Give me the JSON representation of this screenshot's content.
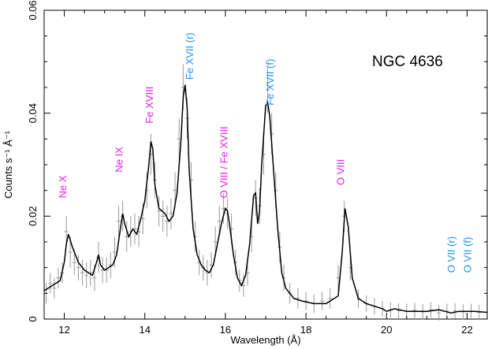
{
  "chart_data": {
    "type": "line",
    "title": "NGC 4636",
    "xlabel": "Wavelength (Å)",
    "ylabel": "Counts s⁻¹ Å⁻¹",
    "xlim": [
      11.5,
      22.5
    ],
    "ylim": [
      0,
      0.06
    ],
    "grid": false,
    "x_ticks": [
      12,
      14,
      16,
      18,
      20,
      22
    ],
    "x_tick_labels": [
      "12",
      "14",
      "16",
      "18",
      "20",
      "22"
    ],
    "y_ticks": [
      0,
      0.02,
      0.04,
      0.06
    ],
    "y_tick_labels": [
      "0",
      "0.02",
      "0.04",
      "0.06"
    ],
    "series": [
      {
        "name": "",
        "style": "line",
        "color": "#000000",
        "x": [
          11.5,
          11.7,
          11.9,
          12.0,
          12.05,
          12.1,
          12.2,
          12.35,
          12.5,
          12.7,
          12.8,
          12.85,
          12.9,
          13.0,
          13.2,
          13.3,
          13.4,
          13.45,
          13.5,
          13.6,
          13.7,
          13.8,
          13.9,
          14.0,
          14.1,
          14.15,
          14.2,
          14.25,
          14.35,
          14.5,
          14.6,
          14.7,
          14.8,
          14.9,
          14.95,
          15.0,
          15.05,
          15.1,
          15.2,
          15.3,
          15.4,
          15.5,
          15.6,
          15.7,
          15.8,
          15.9,
          16.0,
          16.05,
          16.1,
          16.2,
          16.3,
          16.4,
          16.5,
          16.6,
          16.7,
          16.75,
          16.8,
          16.85,
          16.9,
          17.0,
          17.05,
          17.1,
          17.2,
          17.3,
          17.4,
          17.5,
          17.7,
          17.9,
          18.2,
          18.5,
          18.8,
          18.9,
          18.97,
          19.05,
          19.15,
          19.3,
          19.5,
          19.7,
          19.9,
          20.0,
          20.2,
          20.5,
          20.8,
          21.0,
          21.3,
          21.6,
          21.8,
          22.0,
          22.2,
          22.5
        ],
        "y": [
          0.0055,
          0.0065,
          0.0075,
          0.011,
          0.0145,
          0.0165,
          0.014,
          0.011,
          0.0095,
          0.0085,
          0.011,
          0.0125,
          0.0105,
          0.0095,
          0.0105,
          0.0125,
          0.018,
          0.0205,
          0.0185,
          0.016,
          0.0175,
          0.0165,
          0.0195,
          0.023,
          0.03,
          0.0345,
          0.033,
          0.026,
          0.0215,
          0.0205,
          0.019,
          0.02,
          0.0245,
          0.035,
          0.043,
          0.0455,
          0.041,
          0.029,
          0.0175,
          0.0125,
          0.0105,
          0.0095,
          0.009,
          0.0105,
          0.0145,
          0.0185,
          0.0215,
          0.021,
          0.0185,
          0.0125,
          0.008,
          0.0065,
          0.0085,
          0.0145,
          0.024,
          0.0245,
          0.0185,
          0.021,
          0.03,
          0.0415,
          0.042,
          0.0395,
          0.0285,
          0.0175,
          0.009,
          0.006,
          0.004,
          0.0035,
          0.003,
          0.003,
          0.0045,
          0.013,
          0.0215,
          0.018,
          0.008,
          0.004,
          0.003,
          0.0025,
          0.002,
          0.0015,
          0.002,
          0.0015,
          0.0015,
          0.0015,
          0.0018,
          0.0012,
          0.0015,
          0.0015,
          0.0015,
          0.0013
        ]
      },
      {
        "name": "",
        "style": "errorbar-points",
        "color": "#999999",
        "x": [
          11.55,
          11.65,
          11.75,
          11.85,
          11.95,
          12.05,
          12.15,
          12.25,
          12.35,
          12.45,
          12.55,
          12.65,
          12.75,
          12.85,
          12.95,
          13.05,
          13.15,
          13.25,
          13.35,
          13.45,
          13.55,
          13.65,
          13.75,
          13.85,
          13.95,
          14.05,
          14.15,
          14.25,
          14.35,
          14.45,
          14.55,
          14.65,
          14.75,
          14.85,
          14.95,
          15.05,
          15.15,
          15.25,
          15.35,
          15.45,
          15.55,
          15.65,
          15.75,
          15.85,
          15.95,
          16.05,
          16.15,
          16.25,
          16.35,
          16.45,
          16.55,
          16.65,
          16.75,
          16.85,
          16.95,
          17.05,
          17.15,
          17.25,
          17.35,
          17.45,
          17.6,
          17.8,
          18.0,
          18.2,
          18.4,
          18.6,
          18.8,
          18.95,
          19.1,
          19.3,
          19.5,
          19.7,
          19.9,
          20.1,
          20.3,
          20.5,
          20.7,
          20.9,
          21.1,
          21.3,
          21.5,
          21.7,
          21.9,
          22.1,
          22.3
        ],
        "y": [
          0.005,
          0.007,
          0.006,
          0.008,
          0.009,
          0.017,
          0.013,
          0.011,
          0.01,
          0.009,
          0.0085,
          0.009,
          0.008,
          0.012,
          0.0095,
          0.0095,
          0.0105,
          0.013,
          0.019,
          0.02,
          0.016,
          0.017,
          0.0175,
          0.017,
          0.0195,
          0.025,
          0.032,
          0.027,
          0.021,
          0.02,
          0.019,
          0.0205,
          0.025,
          0.035,
          0.045,
          0.039,
          0.027,
          0.016,
          0.011,
          0.01,
          0.009,
          0.0105,
          0.015,
          0.019,
          0.0215,
          0.0205,
          0.0175,
          0.011,
          0.0075,
          0.0065,
          0.009,
          0.016,
          0.0235,
          0.022,
          0.032,
          0.0445,
          0.036,
          0.025,
          0.014,
          0.008,
          0.005,
          0.004,
          0.0035,
          0.003,
          0.0035,
          0.004,
          0.008,
          0.02,
          0.01,
          0.004,
          0.003,
          0.0025,
          0.002,
          0.0018,
          0.0016,
          0.0015,
          0.0017,
          0.0014,
          0.0018,
          0.0012,
          0.0015,
          0.0016,
          0.0014,
          0.0015,
          0.0013
        ],
        "yerr": [
          0.002,
          0.002,
          0.002,
          0.002,
          0.002,
          0.003,
          0.003,
          0.0025,
          0.0025,
          0.0025,
          0.0025,
          0.0025,
          0.0025,
          0.003,
          0.0025,
          0.0025,
          0.0025,
          0.003,
          0.003,
          0.003,
          0.003,
          0.003,
          0.003,
          0.003,
          0.003,
          0.0035,
          0.004,
          0.0035,
          0.003,
          0.003,
          0.003,
          0.003,
          0.0035,
          0.004,
          0.0045,
          0.004,
          0.0035,
          0.003,
          0.0025,
          0.0025,
          0.0025,
          0.0025,
          0.003,
          0.003,
          0.003,
          0.003,
          0.003,
          0.0025,
          0.0022,
          0.0022,
          0.0025,
          0.003,
          0.0035,
          0.0035,
          0.004,
          0.0045,
          0.004,
          0.0035,
          0.003,
          0.0025,
          0.002,
          0.002,
          0.0018,
          0.0018,
          0.0018,
          0.002,
          0.0025,
          0.003,
          0.0025,
          0.0018,
          0.0016,
          0.0016,
          0.0015,
          0.0015,
          0.0015,
          0.0015,
          0.0015,
          0.0015,
          0.0015,
          0.0015,
          0.0015,
          0.0015,
          0.0015,
          0.0015,
          0.0015
        ]
      }
    ],
    "annotations": [
      {
        "text": "Ne X",
        "x": 12.05,
        "y": 0.0235,
        "color": "#e41ce4"
      },
      {
        "text": "Ne IX",
        "x": 13.45,
        "y": 0.0285,
        "color": "#e41ce4"
      },
      {
        "text": "Fe XVIII",
        "x": 14.2,
        "y": 0.038,
        "color": "#e41ce4"
      },
      {
        "text": "Fe XVII (r)",
        "x": 15.2,
        "y": 0.0465,
        "color": "#1e90ff"
      },
      {
        "text": "O VIII / Fe XVIII",
        "x": 16.05,
        "y": 0.0235,
        "color": "#e41ce4"
      },
      {
        "text": "Fe XVII (f)",
        "x": 17.2,
        "y": 0.0415,
        "color": "#1e90ff"
      },
      {
        "text": "O VIII",
        "x": 18.95,
        "y": 0.026,
        "color": "#e41ce4"
      },
      {
        "text": "O VII (r)",
        "x": 21.7,
        "y": 0.009,
        "color": "#1e90ff"
      },
      {
        "text": "O VII (f)",
        "x": 22.1,
        "y": 0.009,
        "color": "#1e90ff"
      }
    ]
  }
}
